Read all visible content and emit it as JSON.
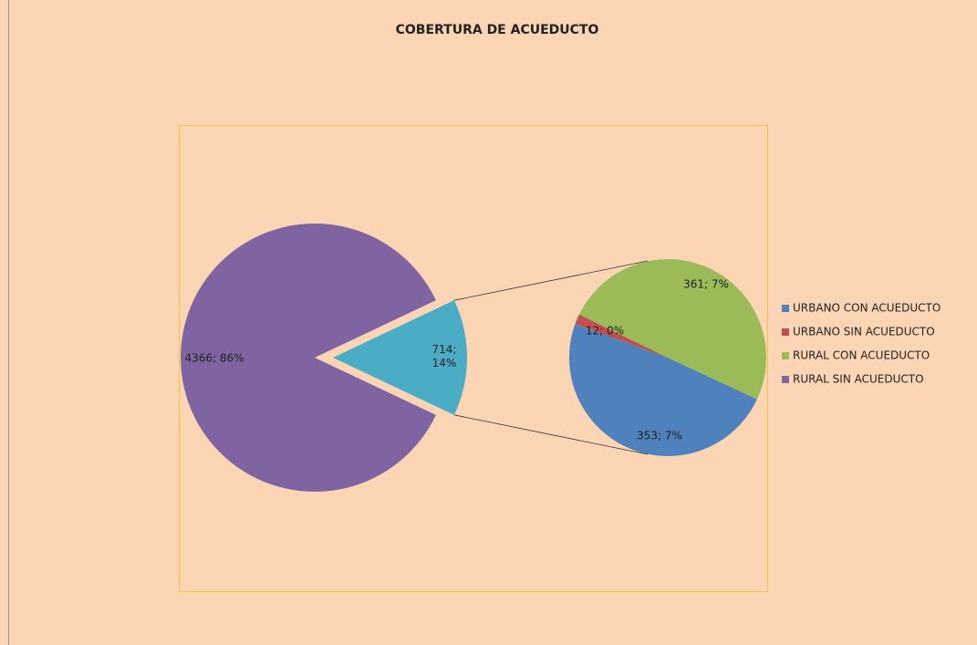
{
  "chart_data": {
    "type": "pie-of-pie",
    "title": "COBERTURA DE ACUEDUCTO",
    "categories": [
      "URBANO CON  ACUEDUCTO",
      "URBANO SIN ACUEDUCTO",
      "RURAL CON ACUEDUCTO",
      "RURAL SIN ACUEDUCTO"
    ],
    "values": [
      353,
      12,
      361,
      4366
    ],
    "value_labels": [
      "353; 7%",
      "12; 0%",
      "361; 7%",
      "4366; 86%"
    ],
    "colors": [
      "#4f81bd",
      "#c0504d",
      "#9bbb59",
      "#8064a2"
    ],
    "secondary": {
      "value": 714,
      "value_label": "714; 14%",
      "color": "#4bacc6"
    },
    "legend": "right"
  }
}
